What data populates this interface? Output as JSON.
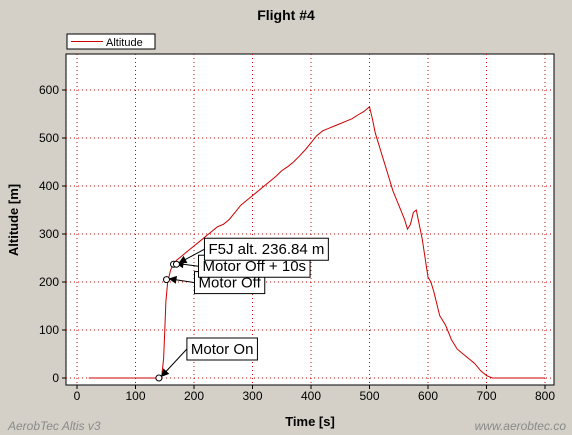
{
  "chart_data": {
    "type": "line",
    "title": "Flight #4",
    "xlabel": "Time [s]",
    "ylabel": "Altitude [m]",
    "xlim": [
      0,
      820
    ],
    "ylim": [
      0,
      680
    ],
    "xticks": [
      0,
      100,
      200,
      300,
      400,
      500,
      600,
      700,
      800
    ],
    "yticks": [
      0,
      100,
      200,
      300,
      400,
      500,
      600
    ],
    "grid": true,
    "legend_position": "top-left",
    "series": [
      {
        "name": "Altitude",
        "color": "#cc0000",
        "x": [
          20,
          140,
          145,
          148,
          150,
          152,
          155,
          160,
          165,
          170,
          180,
          190,
          200,
          210,
          220,
          230,
          240,
          250,
          260,
          270,
          280,
          290,
          300,
          310,
          320,
          330,
          340,
          350,
          360,
          370,
          380,
          390,
          400,
          410,
          420,
          430,
          440,
          450,
          460,
          470,
          480,
          490,
          495,
          500,
          505,
          510,
          515,
          520,
          530,
          540,
          550,
          560,
          565,
          570,
          575,
          580,
          585,
          590,
          595,
          600,
          605,
          610,
          620,
          630,
          640,
          650,
          660,
          670,
          680,
          690,
          700,
          710,
          720,
          760,
          800
        ],
        "y": [
          0,
          0,
          5,
          40,
          100,
          160,
          200,
          225,
          237,
          245,
          255,
          265,
          275,
          285,
          295,
          305,
          315,
          320,
          330,
          345,
          360,
          370,
          380,
          390,
          400,
          410,
          420,
          432,
          440,
          450,
          462,
          475,
          490,
          505,
          515,
          520,
          525,
          530,
          535,
          540,
          548,
          555,
          560,
          565,
          540,
          510,
          490,
          470,
          430,
          390,
          360,
          330,
          310,
          320,
          345,
          350,
          320,
          290,
          250,
          210,
          200,
          180,
          130,
          110,
          80,
          60,
          50,
          40,
          30,
          15,
          5,
          0,
          0,
          0,
          0
        ]
      }
    ],
    "annotations": [
      {
        "label": "Motor On",
        "x": 140,
        "y": 0
      },
      {
        "label": "Motor Off",
        "x": 153,
        "y": 205
      },
      {
        "label": "Motor Off + 10s",
        "x": 165,
        "y": 237
      },
      {
        "label": "F5J alt. 236.84 m",
        "x": 170,
        "y": 237
      }
    ]
  },
  "footer": {
    "left": "AerobTec Altis v3",
    "right": "www.aerobtec.co"
  }
}
